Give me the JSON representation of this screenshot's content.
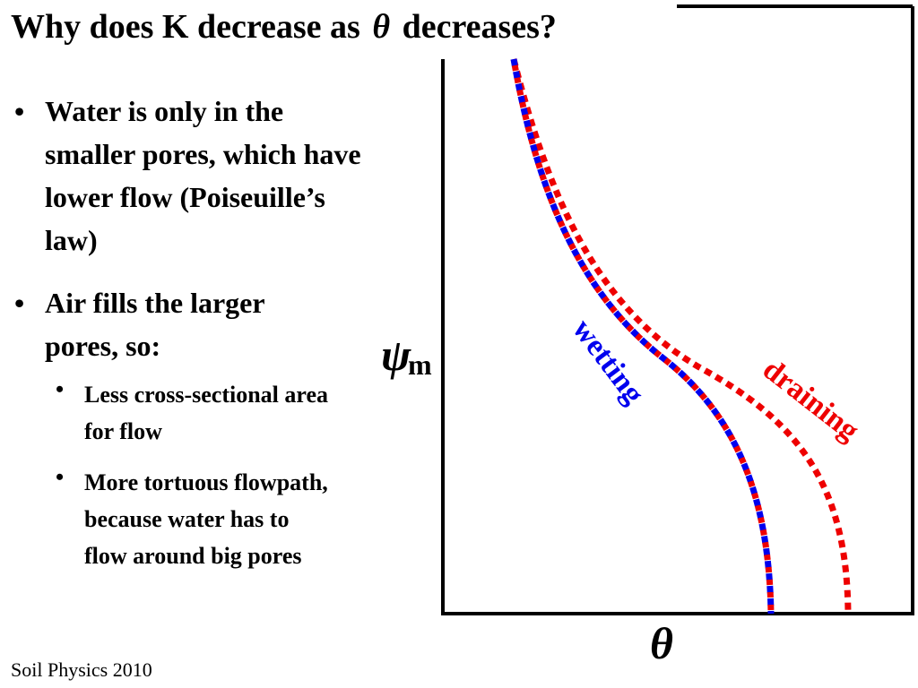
{
  "title": {
    "before": "Why does K decrease as",
    "symbol": "θ",
    "after": "decreases?"
  },
  "bullets": [
    {
      "text": "Water is only in the smaller pores, which have lower flow (Poiseuille’s law)"
    },
    {
      "text": "Air fills the larger pores, so:"
    }
  ],
  "sub_bullets": [
    {
      "text": "Less cross-sectional area for flow"
    },
    {
      "text": "More tortuous flowpath, because water has to flow around big pores"
    }
  ],
  "bullet_char": "•",
  "diagram": {
    "y_axis_symbol": "ψ",
    "y_axis_subscript": "m",
    "x_axis_symbol": "θ",
    "curves": [
      {
        "label": "wetting",
        "color": "#0000ee"
      },
      {
        "label": "draining",
        "color": "#ee0000"
      }
    ]
  },
  "footer": "Soil Physics 2010"
}
